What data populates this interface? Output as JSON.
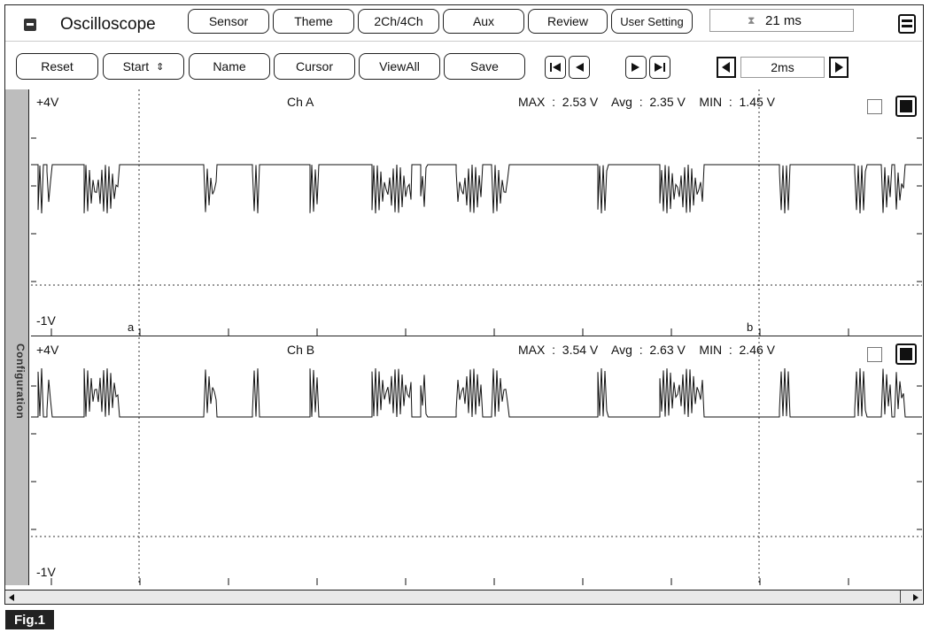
{
  "toolbar": {
    "menu_icon": "window-menu-icon",
    "title": "Oscilloscope",
    "buttons": [
      "Sensor",
      "Theme",
      "2Ch/4Ch",
      "Aux",
      "Review",
      "User Setting"
    ],
    "timer_icon": "hourglass-icon",
    "timer_value": "21 ms",
    "layout_icon": "layout-toggle-icon"
  },
  "controls": {
    "reset": "Reset",
    "start": "Start",
    "name": "Name",
    "cursor": "Cursor",
    "viewall": "ViewAll",
    "save": "Save",
    "time_per_div": "2ms"
  },
  "sidebar": {
    "label": "Configuration"
  },
  "channels": [
    {
      "name": "Ch A",
      "top_label": "+4V",
      "bottom_label": "-1V",
      "stats": "MAX  :  2.53 V    Avg  :  2.35 V    MIN  :  1.45 V",
      "cursor_a": "a",
      "cursor_b": "b"
    },
    {
      "name": "Ch B",
      "top_label": "+4V",
      "bottom_label": "-1V",
      "stats": "MAX  :  3.54 V    Avg  :  2.63 V    MIN  :  2.46 V"
    }
  ],
  "figure_label": "Fig.1"
}
